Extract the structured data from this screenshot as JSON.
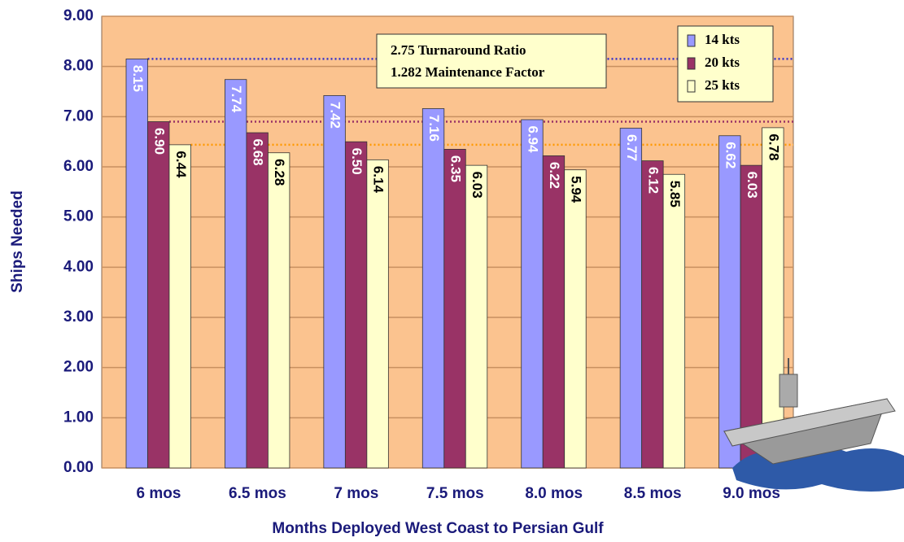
{
  "chart_data": {
    "type": "bar",
    "y_label": "Ships Needed",
    "x_label": "Months Deployed West Coast to Persian Gulf",
    "annotation": [
      "2.75 Turnaround Ratio",
      "1.282 Maintenance Factor"
    ],
    "categories": [
      "6 mos",
      "6.5 mos",
      "7 mos",
      "7.5 mos",
      "8.0 mos",
      "8.5 mos",
      "9.0 mos"
    ],
    "series": [
      {
        "name": "14 kts",
        "color": "#9999ff",
        "values": [
          8.15,
          7.74,
          7.42,
          7.16,
          6.94,
          6.77,
          6.62
        ],
        "value_labels": [
          "8.15",
          "7.74",
          "7.42",
          "7.16",
          "6.94",
          "6.77",
          "6.62"
        ]
      },
      {
        "name": "20 kts",
        "color": "#993366",
        "values": [
          6.9,
          6.68,
          6.5,
          6.35,
          6.22,
          6.12,
          6.03
        ],
        "value_labels": [
          "6.90",
          "6.68",
          "6.50",
          "6.35",
          "6.22",
          "6.12",
          "6.03"
        ]
      },
      {
        "name": "25 kts",
        "color": "#ffffcc",
        "values": [
          6.44,
          6.28,
          6.14,
          6.03,
          5.94,
          5.85,
          6.78
        ],
        "value_labels": [
          "6.44",
          "6.28",
          "6.14",
          "6.03",
          "5.94",
          "5.85",
          "6.78"
        ]
      }
    ],
    "ylim": [
      0,
      9
    ],
    "yticks": [
      {
        "value": 0,
        "label": "0.00"
      },
      {
        "value": 1,
        "label": "1.00"
      },
      {
        "value": 2,
        "label": "2.00"
      },
      {
        "value": 3,
        "label": "3.00"
      },
      {
        "value": 4,
        "label": "4.00"
      },
      {
        "value": 5,
        "label": "5.00"
      },
      {
        "value": 6,
        "label": "6.00"
      },
      {
        "value": 7,
        "label": "7.00"
      },
      {
        "value": 8,
        "label": "8.00"
      },
      {
        "value": 9,
        "label": "9.00"
      }
    ],
    "grid": true,
    "legend": "upper right",
    "background": "#fbc38f"
  }
}
